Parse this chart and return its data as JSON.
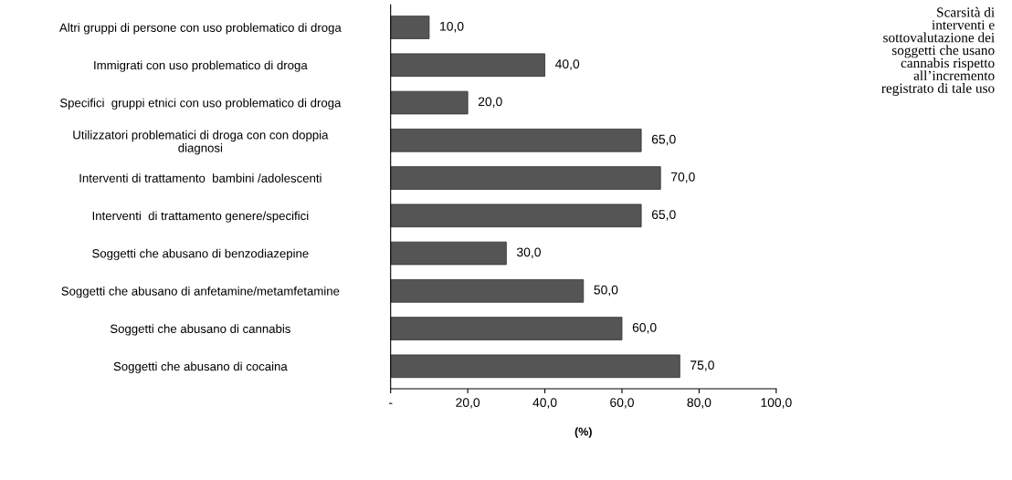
{
  "chart_data": {
    "type": "bar",
    "orientation": "horizontal",
    "categories": [
      "Altri gruppi di persone con uso problematico di droga",
      "Immigrati con uso problematico di droga",
      "Specifici  gruppi etnici con uso problematico di droga",
      "Utilizzatori problematici di droga con con doppia\ndiagnosi",
      "Interventi di trattamento  bambini /adolescenti",
      "Interventi  di trattamento genere/specifici",
      "Soggetti che abusano di benzodiazepine",
      "Soggetti che abusano di anfetamine/metamfetamine",
      "Soggetti che abusano di cannabis",
      "Soggetti che abusano di cocaina"
    ],
    "values": [
      10,
      40,
      20,
      65,
      70,
      65,
      30,
      50,
      60,
      75
    ],
    "value_labels": [
      "10,0",
      "40,0",
      "20,0",
      "65,0",
      "70,0",
      "65,0",
      "30,0",
      "50,0",
      "60,0",
      "75,0"
    ],
    "color": "#555555",
    "xlim": [
      0,
      100
    ],
    "xticks": [
      {
        "value": 0,
        "label": "-"
      },
      {
        "value": 20,
        "label": "20,0"
      },
      {
        "value": 40,
        "label": "40,0"
      },
      {
        "value": 60,
        "label": "60,0"
      },
      {
        "value": 80,
        "label": "80,0"
      },
      {
        "value": 100,
        "label": "100,0"
      }
    ],
    "xlabel": "(%)",
    "grid": false,
    "legend": false,
    "annotations": [
      "Scarsità di\ninterventi e\nsottovalutazione dei\nsoggetti che usano\ncannabis rispetto\nall’incremento\nregistrato di tale uso"
    ]
  }
}
